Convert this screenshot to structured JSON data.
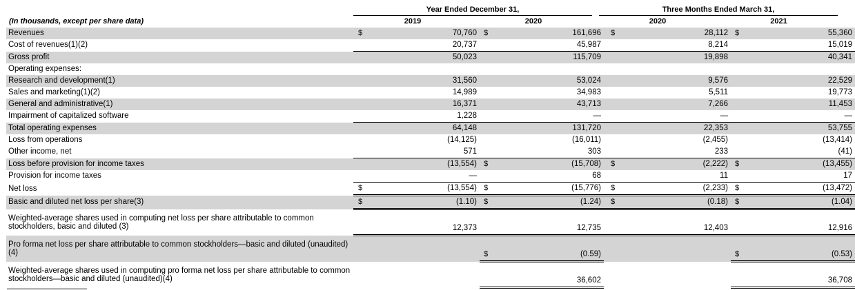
{
  "header": {
    "group1": "Year Ended December 31,",
    "group2": "Three Months Ended March 31,",
    "units": "(In thousands, except per share data)",
    "columns": [
      "2019",
      "2020",
      "2020",
      "2021"
    ]
  },
  "rows": [
    {
      "label": "Revenues",
      "c1": "$",
      "v1": "70,760",
      "c2": "$",
      "v2": "161,696",
      "c3": "$",
      "v3": "28,112",
      "c4": "$",
      "v4": "55,360"
    },
    {
      "label": "Cost of revenues(1)(2)",
      "c1": "",
      "v1": "20,737",
      "c2": "",
      "v2": "45,987",
      "c3": "",
      "v3": "8,214",
      "c4": "",
      "v4": "15,019"
    },
    {
      "label": "Gross profit",
      "c1": "",
      "v1": "50,023",
      "c2": "",
      "v2": "115,709",
      "c3": "",
      "v3": "19,898",
      "c4": "",
      "v4": "40,341"
    },
    {
      "label": "Operating expenses:",
      "c1": "",
      "v1": "",
      "c2": "",
      "v2": "",
      "c3": "",
      "v3": "",
      "c4": "",
      "v4": ""
    },
    {
      "label": "Research and development(1)",
      "c1": "",
      "v1": "31,560",
      "c2": "",
      "v2": "53,024",
      "c3": "",
      "v3": "9,576",
      "c4": "",
      "v4": "22,529"
    },
    {
      "label": "Sales and marketing(1)(2)",
      "c1": "",
      "v1": "14,989",
      "c2": "",
      "v2": "34,983",
      "c3": "",
      "v3": "5,511",
      "c4": "",
      "v4": "19,773"
    },
    {
      "label": "General and administrative(1)",
      "c1": "",
      "v1": "16,371",
      "c2": "",
      "v2": "43,713",
      "c3": "",
      "v3": "7,266",
      "c4": "",
      "v4": "11,453"
    },
    {
      "label": "Impairment of capitalized software",
      "c1": "",
      "v1": "1,228",
      "c2": "",
      "v2": "—",
      "c3": "",
      "v3": "—",
      "c4": "",
      "v4": "—"
    },
    {
      "label": "Total operating expenses",
      "c1": "",
      "v1": "64,148",
      "c2": "",
      "v2": "131,720",
      "c3": "",
      "v3": "22,353",
      "c4": "",
      "v4": "53,755"
    },
    {
      "label": "Loss from operations",
      "c1": "",
      "v1": "(14,125)",
      "c2": "",
      "v2": "(16,011)",
      "c3": "",
      "v3": "(2,455)",
      "c4": "",
      "v4": "(13,414)"
    },
    {
      "label": "Other income, net",
      "c1": "",
      "v1": "571",
      "c2": "",
      "v2": "303",
      "c3": "",
      "v3": "233",
      "c4": "",
      "v4": "(41)"
    },
    {
      "label": "Loss before provision for income taxes",
      "c1": "",
      "v1": "(13,554)",
      "c2": "$",
      "v2": "(15,708)",
      "c3": "$",
      "v3": "(2,222)",
      "c4": "$",
      "v4": "(13,455)"
    },
    {
      "label": "Provision for income taxes",
      "c1": "",
      "v1": "—",
      "c2": "",
      "v2": "68",
      "c3": "",
      "v3": "11",
      "c4": "",
      "v4": "17"
    },
    {
      "label": "Net loss",
      "c1": "$",
      "v1": "(13,554)",
      "c2": "$",
      "v2": "(15,776)",
      "c3": "$",
      "v3": "(2,233)",
      "c4": "$",
      "v4": "(13,472)"
    },
    {
      "label": "Basic and diluted net loss per share(3)",
      "c1": "$",
      "v1": "(1.10)",
      "c2": "$",
      "v2": "(1.24)",
      "c3": "$",
      "v3": "(0.18)",
      "c4": "$",
      "v4": "(1.04)"
    },
    {
      "label": "Weighted-average shares used in computing net loss per share attributable to common stockholders, basic and diluted (3)",
      "c1": "",
      "v1": "12,373",
      "c2": "",
      "v2": "12,735",
      "c3": "",
      "v3": "12,403",
      "c4": "",
      "v4": "12,916"
    },
    {
      "label": "Pro forma net loss per share attributable to common stockholders—basic and diluted (unaudited)(4)",
      "c1": "",
      "v1": "",
      "c2": "$",
      "v2": "(0.59)",
      "c3": "",
      "v3": "",
      "c4": "$",
      "v4": "(0.53)"
    },
    {
      "label": "Weighted-average shares used in computing pro forma net loss per share attributable to common stockholders—basic and diluted (unaudited)(4)",
      "c1": "",
      "v1": "",
      "c2": "",
      "v2": "36,602",
      "c3": "",
      "v3": "",
      "c4": "",
      "v4": "36,708"
    }
  ]
}
